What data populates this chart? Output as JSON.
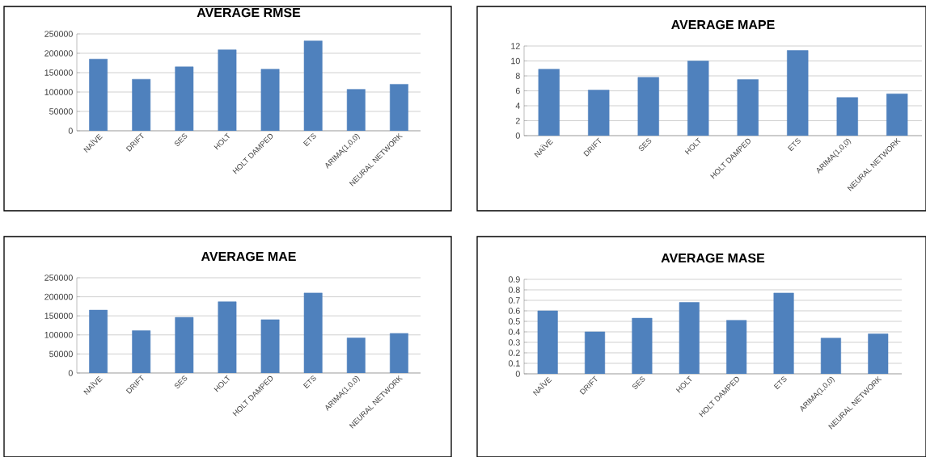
{
  "chart_data": [
    {
      "type": "bar",
      "title": "AVERAGE RMSE",
      "categories": [
        "NAÏVE",
        "DRIFT",
        "SES",
        "HOLT",
        "HOLT DAMPED",
        "ETS",
        "ARIMA(1,0,0)",
        "NEURAL NETWORK"
      ],
      "values": [
        185000,
        133000,
        165000,
        209000,
        159000,
        232000,
        107000,
        120000
      ],
      "color": "#4f81bd",
      "ylim": [
        0,
        250000
      ],
      "yticks": [
        0,
        50000,
        100000,
        150000,
        200000,
        250000
      ],
      "grid": "y"
    },
    {
      "type": "bar",
      "title": "AVERAGE MAPE",
      "categories": [
        "NAÏVE",
        "DRIFT",
        "SES",
        "HOLT",
        "HOLT DAMPED",
        "ETS",
        "ARIMA(1,0,0)",
        "NEURAL NETWORK"
      ],
      "values": [
        8.9,
        6.1,
        7.8,
        10.0,
        7.5,
        11.4,
        5.1,
        5.6
      ],
      "color": "#4f81bd",
      "ylim": [
        0,
        12
      ],
      "yticks": [
        0,
        2,
        4,
        6,
        8,
        10,
        12
      ],
      "grid": "y"
    },
    {
      "type": "bar",
      "title": "AVERAGE MAE",
      "categories": [
        "NAÏVE",
        "DRIFT",
        "SES",
        "HOLT",
        "HOLT DAMPED",
        "ETS",
        "ARIMA(1,0,0)",
        "NEURAL NETWORK"
      ],
      "values": [
        165000,
        111000,
        146000,
        187000,
        140000,
        210000,
        92000,
        104000
      ],
      "color": "#4f81bd",
      "ylim": [
        0,
        250000
      ],
      "yticks": [
        0,
        50000,
        100000,
        150000,
        200000,
        250000
      ],
      "grid": "y"
    },
    {
      "type": "bar",
      "title": "AVERAGE MASE",
      "categories": [
        "NAÏVE",
        "DRIFT",
        "SES",
        "HOLT",
        "HOLT DAMPED",
        "ETS",
        "ARIMA(1,0,0)",
        "NEURAL NETWORK"
      ],
      "values": [
        0.6,
        0.4,
        0.53,
        0.68,
        0.51,
        0.77,
        0.34,
        0.38
      ],
      "color": "#4f81bd",
      "ylim": [
        0,
        0.9
      ],
      "yticks": [
        0,
        0.1,
        0.2,
        0.3,
        0.4,
        0.5,
        0.6,
        0.7,
        0.8,
        0.9
      ],
      "grid": "y"
    }
  ]
}
